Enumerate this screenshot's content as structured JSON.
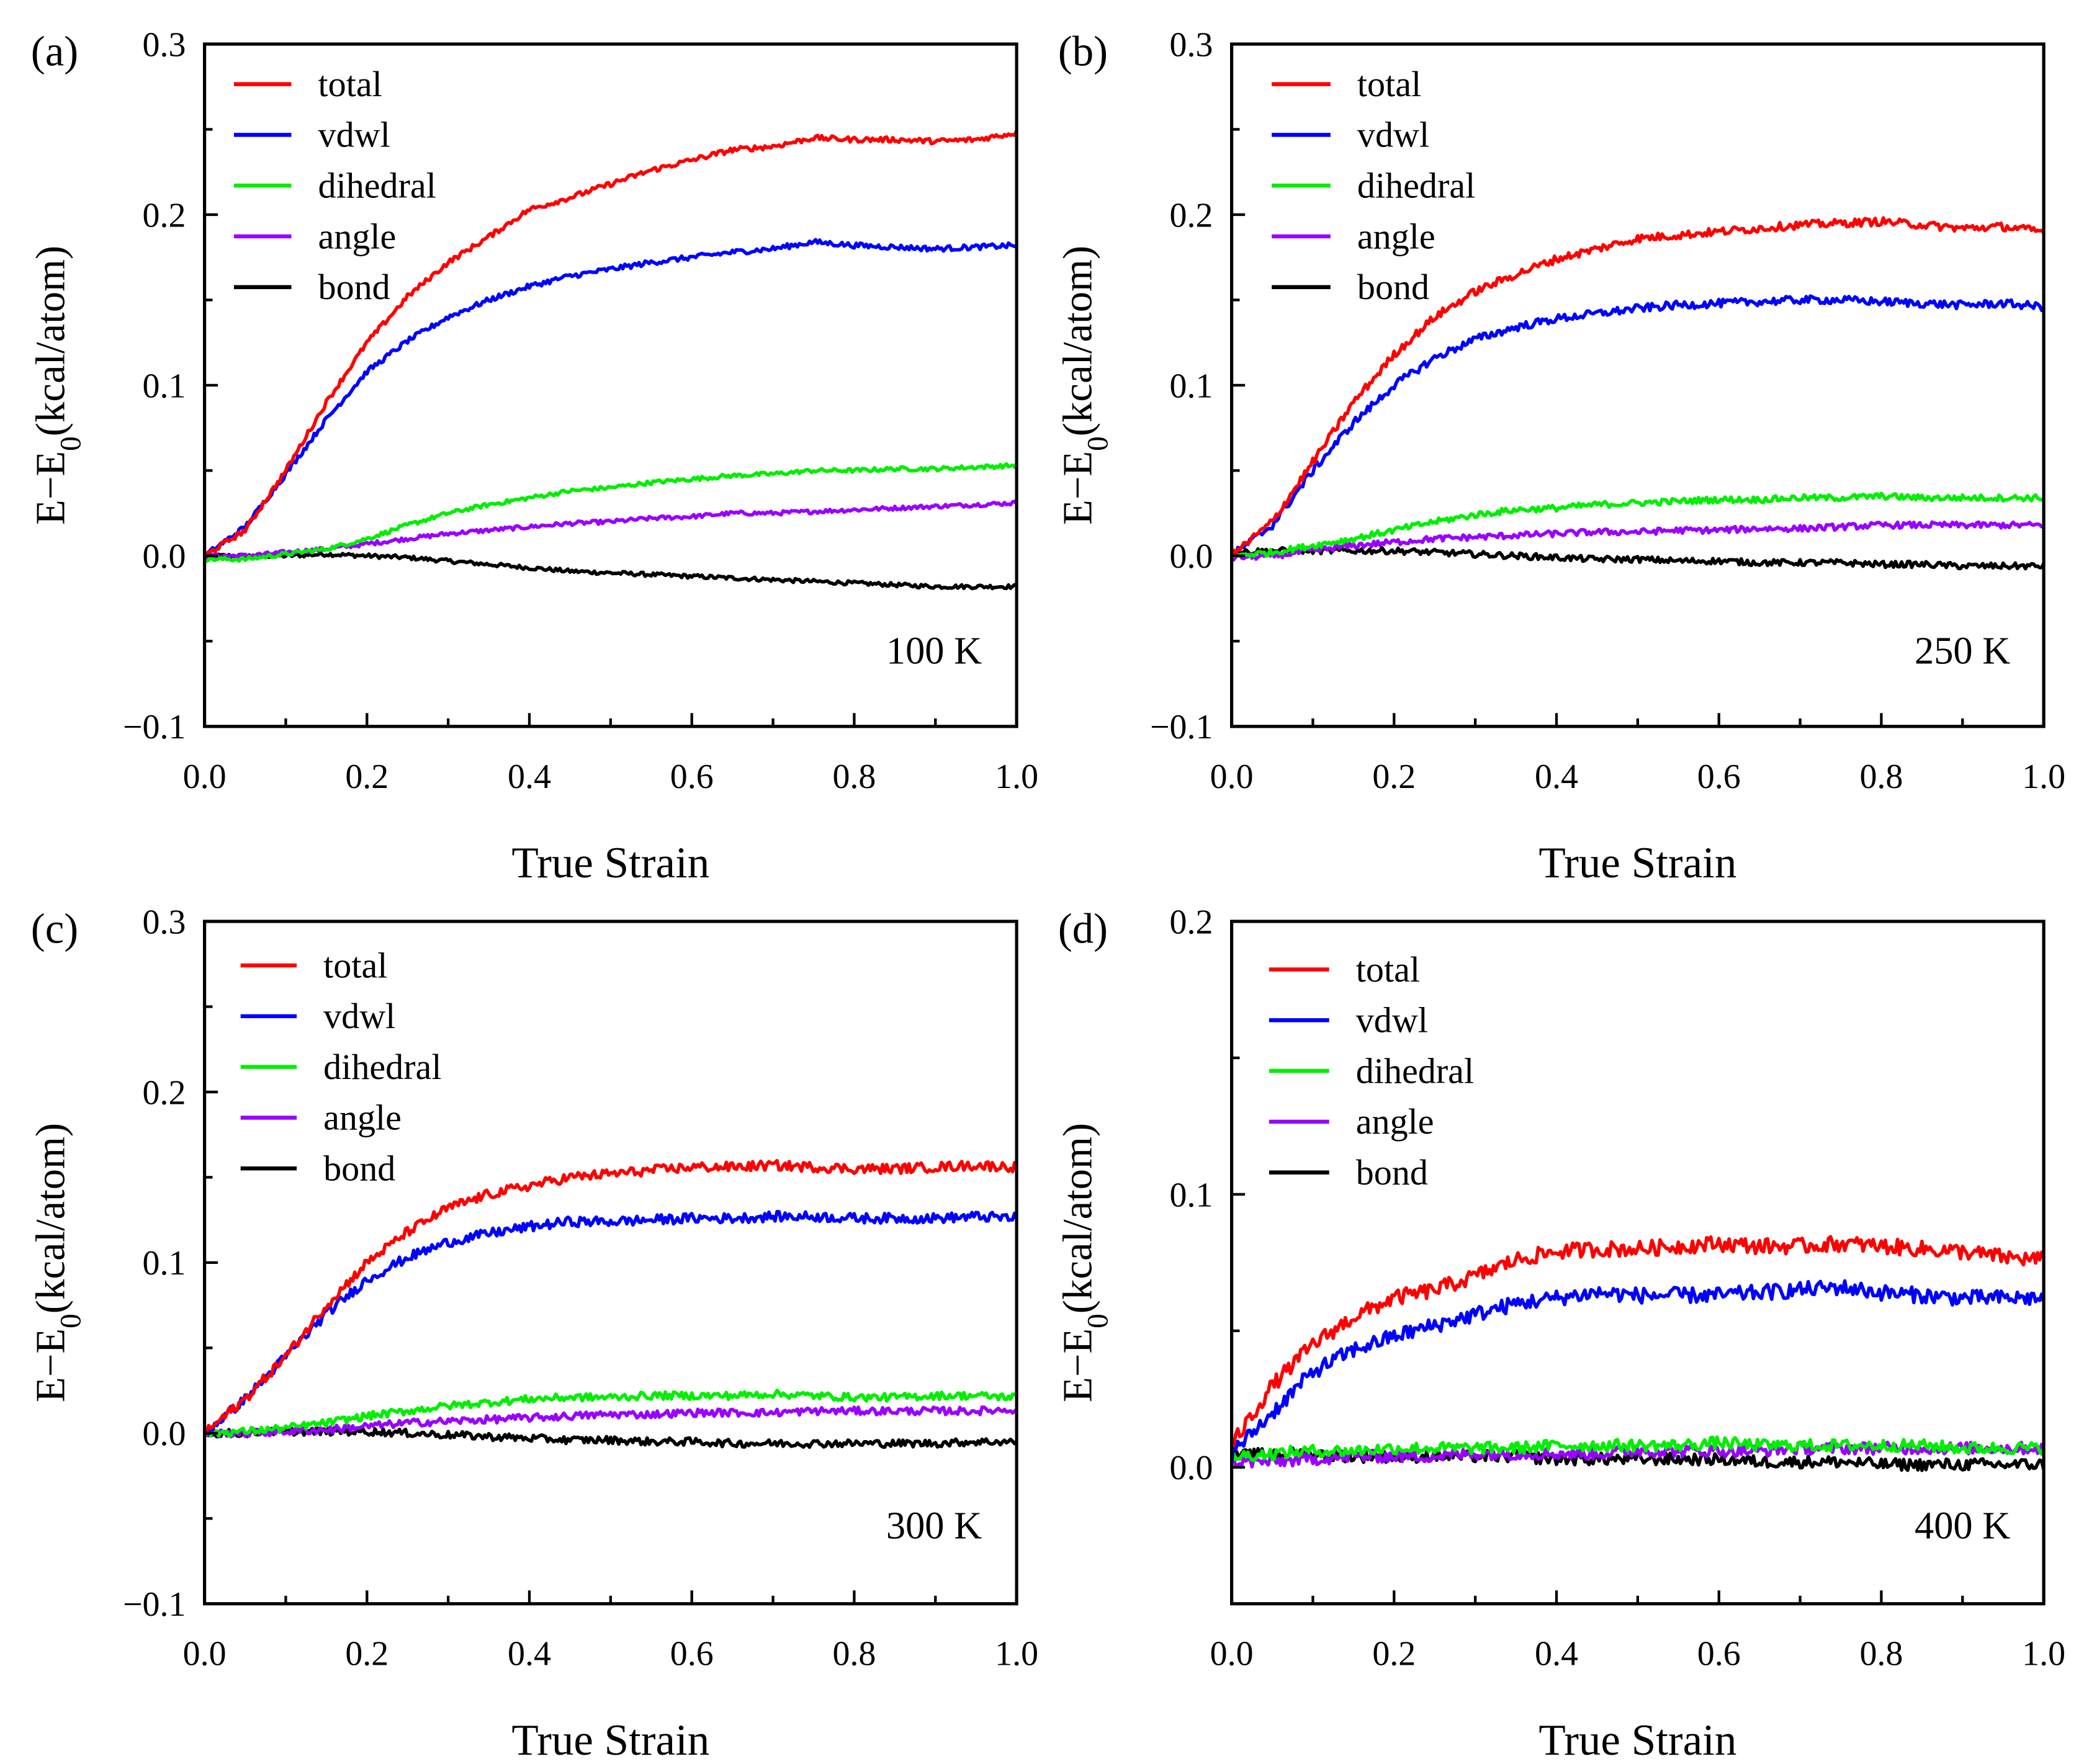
{
  "chart_data": [
    {
      "type": "line",
      "panel_label": "(a)",
      "annotation": "100 K",
      "xlabel": "True Strain",
      "ylabel": "E−E",
      "ylabel_sub": "0",
      "ylabel_tail": "(kcal/atom)",
      "xlim": [
        0,
        1.0
      ],
      "ylim": [
        -0.1,
        0.3
      ],
      "xticks": [
        "0.0",
        "0.2",
        "0.4",
        "0.6",
        "0.8",
        "1.0"
      ],
      "yticks": [
        "−0.1",
        "0.0",
        "0.1",
        "0.2",
        "0.3"
      ],
      "legend_position": "top-left",
      "noise": 0.0012,
      "x": [
        0,
        0.05,
        0.1,
        0.15,
        0.2,
        0.25,
        0.3,
        0.35,
        0.4,
        0.45,
        0.5,
        0.55,
        0.6,
        0.65,
        0.7,
        0.75,
        0.8,
        0.85,
        0.9,
        0.95,
        1.0
      ],
      "series": [
        {
          "name": "total",
          "color": "#ff0000",
          "values": [
            0,
            0.015,
            0.05,
            0.09,
            0.125,
            0.152,
            0.172,
            0.187,
            0.203,
            0.21,
            0.218,
            0.226,
            0.232,
            0.238,
            0.24,
            0.245,
            0.244,
            0.244,
            0.243,
            0.244,
            0.248
          ]
        },
        {
          "name": "vdwl",
          "color": "#0000ff",
          "values": [
            0,
            0.017,
            0.048,
            0.08,
            0.108,
            0.126,
            0.14,
            0.15,
            0.158,
            0.164,
            0.168,
            0.172,
            0.175,
            0.178,
            0.18,
            0.184,
            0.182,
            0.181,
            0.18,
            0.181,
            0.182
          ]
        },
        {
          "name": "dihedral",
          "color": "#00ee00",
          "values": [
            -0.002,
            -0.002,
            0.001,
            0.004,
            0.01,
            0.018,
            0.025,
            0.03,
            0.034,
            0.038,
            0.04,
            0.043,
            0.045,
            0.047,
            0.048,
            0.05,
            0.05,
            0.051,
            0.051,
            0.052,
            0.053
          ]
        },
        {
          "name": "angle",
          "color": "#9900ff",
          "values": [
            0,
            0,
            0.002,
            0.004,
            0.007,
            0.01,
            0.013,
            0.015,
            0.017,
            0.019,
            0.02,
            0.022,
            0.023,
            0.025,
            0.025,
            0.026,
            0.027,
            0.028,
            0.029,
            0.03,
            0.031
          ]
        },
        {
          "name": "bond",
          "color": "#000000",
          "values": [
            0,
            0,
            0,
            0.001,
            0,
            -0.001,
            -0.003,
            -0.005,
            -0.007,
            -0.009,
            -0.01,
            -0.011,
            -0.012,
            -0.013,
            -0.014,
            -0.015,
            -0.016,
            -0.017,
            -0.018,
            -0.018,
            -0.018
          ]
        }
      ]
    },
    {
      "type": "line",
      "panel_label": "(b)",
      "annotation": "250 K",
      "xlabel": "True Strain",
      "ylabel": "E−E",
      "ylabel_sub": "0",
      "ylabel_tail": "(kcal/atom)",
      "xlim": [
        0,
        1.0
      ],
      "ylim": [
        -0.1,
        0.3
      ],
      "xticks": [
        "0.0",
        "0.2",
        "0.4",
        "0.6",
        "0.8",
        "1.0"
      ],
      "yticks": [
        "−0.1",
        "0.0",
        "0.1",
        "0.2",
        "0.3"
      ],
      "legend_position": "top-left",
      "noise": 0.0018,
      "x": [
        0,
        0.05,
        0.1,
        0.15,
        0.2,
        0.25,
        0.3,
        0.35,
        0.4,
        0.45,
        0.5,
        0.55,
        0.6,
        0.65,
        0.7,
        0.75,
        0.8,
        0.85,
        0.9,
        0.95,
        1.0
      ],
      "series": [
        {
          "name": "total",
          "color": "#ff0000",
          "values": [
            0,
            0.02,
            0.055,
            0.09,
            0.118,
            0.14,
            0.155,
            0.165,
            0.174,
            0.18,
            0.186,
            0.188,
            0.19,
            0.192,
            0.194,
            0.195,
            0.196,
            0.194,
            0.192,
            0.193,
            0.19
          ]
        },
        {
          "name": "vdwl",
          "color": "#0000ff",
          "values": [
            0,
            0.018,
            0.05,
            0.078,
            0.1,
            0.116,
            0.127,
            0.134,
            0.139,
            0.142,
            0.145,
            0.147,
            0.148,
            0.149,
            0.15,
            0.15,
            0.149,
            0.148,
            0.147,
            0.148,
            0.146
          ]
        },
        {
          "name": "dihedral",
          "color": "#00ee00",
          "values": [
            0,
            0.002,
            0.006,
            0.01,
            0.015,
            0.02,
            0.024,
            0.027,
            0.028,
            0.03,
            0.031,
            0.032,
            0.033,
            0.033,
            0.034,
            0.034,
            0.035,
            0.034,
            0.034,
            0.034,
            0.034
          ]
        },
        {
          "name": "angle",
          "color": "#9900ff",
          "values": [
            -0.001,
            0,
            0.003,
            0.006,
            0.008,
            0.01,
            0.011,
            0.012,
            0.013,
            0.014,
            0.014,
            0.015,
            0.015,
            0.016,
            0.016,
            0.017,
            0.018,
            0.018,
            0.018,
            0.018,
            0.018
          ]
        },
        {
          "name": "bond",
          "color": "#000000",
          "values": [
            0.002,
            0.003,
            0.003,
            0.003,
            0.003,
            0.002,
            0.001,
            0,
            -0.001,
            -0.002,
            -0.002,
            -0.003,
            -0.003,
            -0.004,
            -0.004,
            -0.004,
            -0.005,
            -0.005,
            -0.006,
            -0.006,
            -0.006
          ]
        }
      ]
    },
    {
      "type": "line",
      "panel_label": "(c)",
      "annotation": "300 K",
      "xlabel": "True Strain",
      "ylabel": "E−E",
      "ylabel_sub": "0",
      "ylabel_tail": "(kcal/atom)",
      "xlim": [
        0,
        1.0
      ],
      "ylim": [
        -0.1,
        0.3
      ],
      "xticks": [
        "0.0",
        "0.2",
        "0.4",
        "0.6",
        "0.8",
        "1.0"
      ],
      "yticks": [
        "−0.1",
        "0.0",
        "0.1",
        "0.2",
        "0.3"
      ],
      "legend_position": "top-left",
      "noise": 0.0022,
      "x": [
        0,
        0.05,
        0.1,
        0.15,
        0.2,
        0.25,
        0.3,
        0.35,
        0.4,
        0.45,
        0.5,
        0.55,
        0.6,
        0.65,
        0.7,
        0.75,
        0.8,
        0.85,
        0.9,
        0.95,
        1.0
      ],
      "series": [
        {
          "name": "total",
          "color": "#ff0000",
          "values": [
            0,
            0.02,
            0.045,
            0.075,
            0.1,
            0.118,
            0.132,
            0.14,
            0.145,
            0.15,
            0.152,
            0.154,
            0.156,
            0.156,
            0.157,
            0.156,
            0.155,
            0.155,
            0.156,
            0.157,
            0.156
          ]
        },
        {
          "name": "vdwl",
          "color": "#0000ff",
          "values": [
            0,
            0.02,
            0.045,
            0.07,
            0.09,
            0.103,
            0.112,
            0.117,
            0.121,
            0.124,
            0.124,
            0.125,
            0.126,
            0.126,
            0.127,
            0.127,
            0.126,
            0.126,
            0.126,
            0.127,
            0.126
          ]
        },
        {
          "name": "dihedral",
          "color": "#00ee00",
          "values": [
            0,
            0.001,
            0.003,
            0.006,
            0.01,
            0.013,
            0.016,
            0.018,
            0.02,
            0.021,
            0.021,
            0.022,
            0.022,
            0.022,
            0.023,
            0.022,
            0.021,
            0.021,
            0.022,
            0.022,
            0.021
          ]
        },
        {
          "name": "angle",
          "color": "#9900ff",
          "values": [
            0,
            0,
            0.001,
            0.002,
            0.004,
            0.006,
            0.007,
            0.008,
            0.009,
            0.01,
            0.011,
            0.011,
            0.012,
            0.012,
            0.012,
            0.013,
            0.013,
            0.013,
            0.013,
            0.013,
            0.014
          ]
        },
        {
          "name": "bond",
          "color": "#000000",
          "values": [
            0,
            0,
            0.001,
            0.001,
            0.001,
            0,
            -0.001,
            -0.002,
            -0.003,
            -0.004,
            -0.004,
            -0.005,
            -0.005,
            -0.006,
            -0.006,
            -0.006,
            -0.006,
            -0.006,
            -0.006,
            -0.005,
            -0.005
          ]
        }
      ]
    },
    {
      "type": "line",
      "panel_label": "(d)",
      "annotation": "400 K",
      "xlabel": "True Strain",
      "ylabel": "E−E",
      "ylabel_sub": "0",
      "ylabel_tail": "(kcal/atom)",
      "xlim": [
        0,
        1.0
      ],
      "ylim": [
        -0.05,
        0.2
      ],
      "xticks": [
        "0.0",
        "0.2",
        "0.4",
        "0.6",
        "0.8",
        "1.0"
      ],
      "yticks": [
        "0.0",
        "0.1",
        "0.2"
      ],
      "legend_position": "top-left",
      "noise": 0.0022,
      "x": [
        0,
        0.05,
        0.1,
        0.15,
        0.2,
        0.25,
        0.3,
        0.35,
        0.4,
        0.45,
        0.5,
        0.55,
        0.6,
        0.65,
        0.7,
        0.75,
        0.8,
        0.85,
        0.9,
        0.95,
        1.0
      ],
      "series": [
        {
          "name": "total",
          "color": "#ff0000",
          "values": [
            0.008,
            0.03,
            0.045,
            0.055,
            0.062,
            0.065,
            0.07,
            0.076,
            0.079,
            0.08,
            0.08,
            0.081,
            0.082,
            0.081,
            0.081,
            0.082,
            0.081,
            0.08,
            0.079,
            0.077,
            0.076
          ]
        },
        {
          "name": "vdwl",
          "color": "#0000ff",
          "values": [
            0.005,
            0.02,
            0.035,
            0.043,
            0.048,
            0.052,
            0.056,
            0.06,
            0.062,
            0.064,
            0.063,
            0.063,
            0.063,
            0.064,
            0.065,
            0.066,
            0.064,
            0.063,
            0.062,
            0.062,
            0.062
          ]
        },
        {
          "name": "dihedral",
          "color": "#00ee00",
          "values": [
            0.004,
            0.005,
            0.006,
            0.006,
            0.007,
            0.007,
            0.007,
            0.007,
            0.008,
            0.008,
            0.008,
            0.008,
            0.009,
            0.008,
            0.008,
            0.008,
            0.008,
            0.008,
            0.007,
            0.007,
            0.007
          ]
        },
        {
          "name": "angle",
          "color": "#9900ff",
          "values": [
            0.002,
            0.002,
            0.003,
            0.004,
            0.004,
            0.004,
            0.005,
            0.005,
            0.005,
            0.005,
            0.006,
            0.006,
            0.006,
            0.006,
            0.007,
            0.007,
            0.007,
            0.007,
            0.007,
            0.007,
            0.007
          ]
        },
        {
          "name": "bond",
          "color": "#000000",
          "values": [
            0.004,
            0.005,
            0.005,
            0.004,
            0.004,
            0.004,
            0.004,
            0.004,
            0.003,
            0.003,
            0.003,
            0.003,
            0.003,
            0.002,
            0.002,
            0.002,
            0.001,
            0.001,
            0.001,
            0.001,
            0.001
          ]
        }
      ]
    }
  ]
}
